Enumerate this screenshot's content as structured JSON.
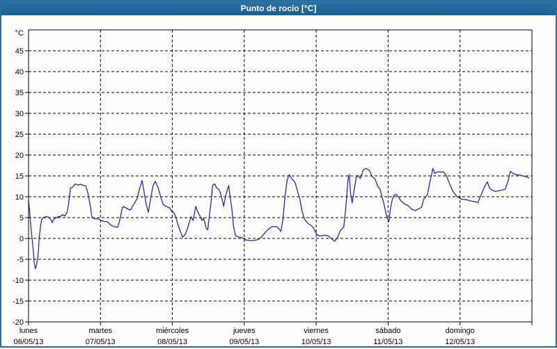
{
  "window": {
    "title": "Punto de rocío [°C]"
  },
  "colors": {
    "titlebar_bg": "#226699",
    "titlebar_text": "#ffffff",
    "window_border": "#2b6d9e",
    "plot_bg": "#fdfffd",
    "grid": "#000000",
    "line": "#2424c3"
  },
  "chart_data": {
    "type": "line",
    "title": "Punto de rocío [°C]",
    "grid": "dashed",
    "legend": "none",
    "y_axis": {
      "unit_label": "°C",
      "ylim": [
        -20,
        50
      ],
      "tick_values": [
        45,
        40,
        35,
        30,
        25,
        20,
        15,
        10,
        5,
        0,
        -5,
        -10,
        -15,
        -20
      ],
      "gridline_values": [
        45,
        40,
        35,
        30,
        25,
        20,
        15,
        10,
        5,
        0,
        -5,
        -10,
        -15
      ]
    },
    "x_axis": {
      "hours_total": 168,
      "gridlines": "day-boundaries",
      "days": [
        {
          "name": "lunes",
          "date": "06/05/13"
        },
        {
          "name": "martes",
          "date": "07/05/13"
        },
        {
          "name": "miércoles",
          "date": "08/05/13"
        },
        {
          "name": "jueves",
          "date": "09/05/13"
        },
        {
          "name": "viernes",
          "date": "10/05/13"
        },
        {
          "name": "sábado",
          "date": "11/05/13"
        },
        {
          "name": "domingo",
          "date": "12/05/13"
        }
      ]
    },
    "series": [
      {
        "name": "Punto de rocío",
        "units": "°C",
        "color": "#2424c3",
        "points_hours_value": [
          [
            0,
            9.6
          ],
          [
            0.5,
            5.0
          ],
          [
            0.9,
            1.8
          ],
          [
            1.4,
            -1.5
          ],
          [
            1.9,
            -5.9
          ],
          [
            2.3,
            -7.3
          ],
          [
            2.8,
            -5.9
          ],
          [
            3.3,
            -3.2
          ],
          [
            3.5,
            -0.1
          ],
          [
            4.0,
            2.9
          ],
          [
            4.4,
            4.6
          ],
          [
            4.9,
            5.0
          ],
          [
            5.6,
            5.2
          ],
          [
            6.5,
            5.2
          ],
          [
            7.4,
            4.6
          ],
          [
            7.9,
            3.8
          ],
          [
            8.4,
            4.6
          ],
          [
            9.1,
            4.9
          ],
          [
            9.8,
            5.2
          ],
          [
            10.7,
            5.3
          ],
          [
            11.4,
            5.7
          ],
          [
            12.1,
            5.4
          ],
          [
            12.8,
            6.2
          ],
          [
            13.3,
            7.9
          ],
          [
            14.0,
            12.1
          ],
          [
            14.9,
            12.4
          ],
          [
            15.6,
            13.1
          ],
          [
            16.5,
            12.8
          ],
          [
            17.4,
            13.0
          ],
          [
            18.4,
            12.7
          ],
          [
            19.1,
            12.6
          ],
          [
            19.8,
            10.9
          ],
          [
            20.5,
            8.2
          ],
          [
            21.2,
            5.0
          ],
          [
            22.1,
            4.7
          ],
          [
            23.3,
            4.7
          ],
          [
            24.0,
            4.4
          ],
          [
            25.1,
            4.1
          ],
          [
            26.3,
            4.0
          ],
          [
            27.5,
            3.2
          ],
          [
            28.6,
            2.8
          ],
          [
            29.8,
            2.7
          ],
          [
            30.5,
            4.6
          ],
          [
            31.2,
            7.1
          ],
          [
            31.6,
            7.7
          ],
          [
            32.3,
            7.4
          ],
          [
            33.3,
            7.0
          ],
          [
            34.0,
            6.8
          ],
          [
            35.1,
            8.2
          ],
          [
            36.3,
            9.6
          ],
          [
            37.0,
            11.8
          ],
          [
            37.9,
            13.9
          ],
          [
            38.6,
            11.0
          ],
          [
            39.3,
            8.0
          ],
          [
            40.0,
            6.3
          ],
          [
            40.9,
            10.2
          ],
          [
            41.6,
            12.7
          ],
          [
            42.3,
            13.7
          ],
          [
            43.3,
            12.1
          ],
          [
            44.0,
            10.2
          ],
          [
            44.9,
            8.2
          ],
          [
            45.8,
            7.7
          ],
          [
            47.0,
            7.4
          ],
          [
            47.9,
            6.4
          ],
          [
            48.4,
            6.3
          ],
          [
            49.1,
            5.2
          ],
          [
            49.8,
            3.5
          ],
          [
            50.5,
            2.0
          ],
          [
            51.4,
            0.3
          ],
          [
            52.3,
            1.0
          ],
          [
            53.0,
            2.3
          ],
          [
            53.7,
            4.0
          ],
          [
            54.2,
            5.2
          ],
          [
            54.9,
            4.3
          ],
          [
            55.8,
            7.7
          ],
          [
            56.5,
            6.3
          ],
          [
            57.2,
            5.4
          ],
          [
            57.9,
            4.3
          ],
          [
            58.4,
            4.9
          ],
          [
            58.9,
            3.5
          ],
          [
            59.3,
            2.4
          ],
          [
            59.8,
            2.1
          ],
          [
            60.3,
            5.2
          ],
          [
            61.0,
            9.3
          ],
          [
            61.4,
            12.7
          ],
          [
            62.1,
            13.1
          ],
          [
            62.8,
            12.1
          ],
          [
            63.5,
            11.8
          ],
          [
            64.0,
            11.0
          ],
          [
            64.7,
            9.1
          ],
          [
            65.1,
            7.7
          ],
          [
            65.8,
            10.4
          ],
          [
            66.8,
            12.7
          ],
          [
            67.2,
            10.4
          ],
          [
            67.9,
            6.8
          ],
          [
            68.4,
            2.9
          ],
          [
            69.1,
            0.6
          ],
          [
            70.3,
            0.3
          ],
          [
            71.2,
            0.2
          ],
          [
            72.3,
            -0.3
          ],
          [
            73.7,
            -0.5
          ],
          [
            75.1,
            -0.5
          ],
          [
            76.5,
            -0.3
          ],
          [
            77.7,
            0.3
          ],
          [
            78.9,
            1.4
          ],
          [
            80.0,
            2.2
          ],
          [
            81.2,
            2.8
          ],
          [
            82.1,
            2.9
          ],
          [
            83.1,
            2.7
          ],
          [
            83.8,
            2.1
          ],
          [
            84.2,
            1.7
          ],
          [
            84.9,
            4.6
          ],
          [
            85.6,
            10.2
          ],
          [
            86.3,
            14.0
          ],
          [
            87.0,
            15.3
          ],
          [
            87.9,
            14.3
          ],
          [
            88.9,
            13.5
          ],
          [
            89.6,
            11.8
          ],
          [
            90.5,
            9.6
          ],
          [
            91.2,
            6.8
          ],
          [
            92.1,
            4.6
          ],
          [
            93.3,
            3.6
          ],
          [
            94.5,
            3.0
          ],
          [
            95.2,
            2.4
          ],
          [
            95.9,
            1.3
          ],
          [
            96.6,
            0.7
          ],
          [
            97.7,
            0.6
          ],
          [
            98.9,
            0.8
          ],
          [
            100.0,
            0.6
          ],
          [
            101.2,
            -0.1
          ],
          [
            102.1,
            -0.7
          ],
          [
            103.1,
            0.2
          ],
          [
            104.0,
            1.8
          ],
          [
            104.7,
            2.4
          ],
          [
            105.2,
            2.7
          ],
          [
            105.9,
            7.4
          ],
          [
            106.6,
            14.1
          ],
          [
            107.0,
            15.3
          ],
          [
            107.5,
            10.7
          ],
          [
            108.0,
            8.5
          ],
          [
            108.7,
            11.8
          ],
          [
            109.4,
            14.6
          ],
          [
            110.0,
            15.1
          ],
          [
            110.7,
            14.4
          ],
          [
            111.7,
            16.4
          ],
          [
            112.6,
            16.8
          ],
          [
            113.8,
            16.3
          ],
          [
            114.7,
            14.8
          ],
          [
            115.6,
            14.3
          ],
          [
            116.6,
            12.4
          ],
          [
            117.3,
            11.8
          ],
          [
            118.0,
            9.9
          ],
          [
            118.6,
            8.3
          ],
          [
            119.1,
            6.6
          ],
          [
            119.6,
            5.1
          ],
          [
            120.3,
            4.1
          ],
          [
            120.7,
            6.6
          ],
          [
            121.2,
            8.8
          ],
          [
            121.9,
            10.3
          ],
          [
            122.6,
            10.6
          ],
          [
            123.3,
            10.1
          ],
          [
            124.2,
            9.1
          ],
          [
            125.4,
            8.3
          ],
          [
            126.6,
            7.9
          ],
          [
            127.7,
            7.1
          ],
          [
            128.9,
            6.7
          ],
          [
            130.0,
            7.0
          ],
          [
            131.2,
            7.5
          ],
          [
            131.9,
            9.4
          ],
          [
            133.1,
            10.4
          ],
          [
            134.0,
            13.8
          ],
          [
            134.5,
            15.2
          ],
          [
            134.9,
            16.8
          ],
          [
            135.6,
            15.6
          ],
          [
            136.6,
            16.0
          ],
          [
            137.5,
            15.9
          ],
          [
            138.4,
            16.0
          ],
          [
            139.4,
            15.1
          ],
          [
            140.5,
            13.1
          ],
          [
            141.7,
            11.2
          ],
          [
            142.9,
            10.1
          ],
          [
            143.8,
            9.7
          ],
          [
            144.5,
            9.4
          ],
          [
            146.1,
            9.3
          ],
          [
            147.5,
            9.0
          ],
          [
            149.1,
            8.8
          ],
          [
            150.0,
            8.6
          ],
          [
            151.0,
            10.4
          ],
          [
            152.2,
            12.4
          ],
          [
            153.1,
            13.6
          ],
          [
            153.8,
            12.1
          ],
          [
            154.7,
            11.6
          ],
          [
            155.6,
            11.3
          ],
          [
            156.8,
            11.4
          ],
          [
            158.0,
            11.6
          ],
          [
            159.1,
            11.8
          ],
          [
            160.1,
            14.0
          ],
          [
            160.8,
            16.1
          ],
          [
            161.7,
            15.6
          ],
          [
            162.6,
            15.3
          ],
          [
            163.8,
            15.2
          ],
          [
            165.0,
            15.0
          ],
          [
            166.1,
            14.8
          ],
          [
            167.0,
            14.5
          ]
        ]
      }
    ]
  }
}
